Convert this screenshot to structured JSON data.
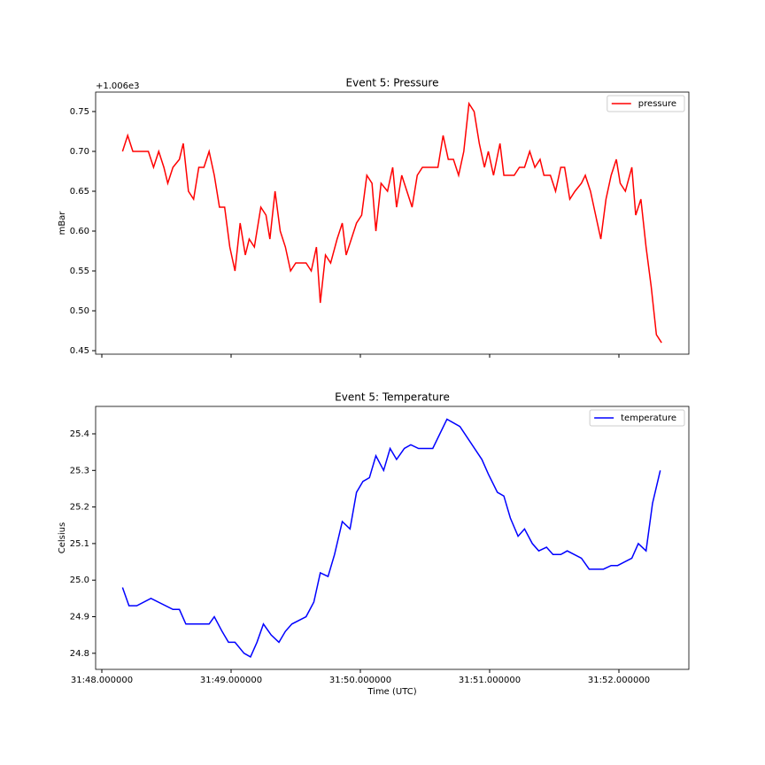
{
  "chart_data": [
    {
      "type": "line",
      "title": "Event 5: Pressure",
      "ylabel": "mBar",
      "y_offset_label": "+1.006e3",
      "xlim": [
        47.952,
        52.541
      ],
      "xticks": [
        48,
        49,
        50,
        51,
        52
      ],
      "ylim": [
        0.4456,
        0.7744
      ],
      "yticks": [
        {
          "value": 0.45,
          "label": "0.45"
        },
        {
          "value": 0.5,
          "label": "0.50"
        },
        {
          "value": 0.55,
          "label": "0.55"
        },
        {
          "value": 0.6,
          "label": "0.60"
        },
        {
          "value": 0.65,
          "label": "0.65"
        },
        {
          "value": 0.7,
          "label": "0.70"
        },
        {
          "value": 0.75,
          "label": "0.75"
        }
      ],
      "legend": "upper right",
      "x": [
        48.16,
        48.2,
        48.24,
        48.28,
        48.32,
        48.36,
        48.4,
        48.44,
        48.48,
        48.51,
        48.55,
        48.6,
        48.63,
        48.67,
        48.71,
        48.75,
        48.79,
        48.83,
        48.87,
        48.91,
        48.95,
        48.99,
        49.03,
        49.07,
        49.11,
        49.14,
        49.18,
        49.23,
        49.27,
        49.3,
        49.34,
        49.38,
        49.42,
        49.46,
        49.5,
        49.54,
        49.58,
        49.62,
        49.66,
        49.69,
        49.73,
        49.77,
        49.82,
        49.86,
        49.89,
        49.93,
        49.97,
        50.01,
        50.05,
        50.09,
        50.12,
        50.16,
        50.21,
        50.25,
        50.28,
        50.32,
        50.36,
        50.4,
        50.44,
        50.48,
        50.52,
        50.55,
        50.6,
        50.64,
        50.68,
        50.72,
        50.76,
        50.8,
        50.84,
        50.88,
        50.92,
        50.96,
        50.99,
        51.03,
        51.08,
        51.11,
        51.15,
        51.19,
        51.23,
        51.27,
        51.31,
        51.35,
        51.39,
        51.42,
        51.47,
        51.51,
        51.55,
        51.58,
        51.62,
        51.66,
        51.71,
        51.74,
        51.78,
        51.82,
        51.86,
        51.9,
        51.94,
        51.98,
        52.01,
        52.05,
        52.1,
        52.13,
        52.17,
        52.21,
        52.25,
        52.29,
        52.33
      ],
      "series": [
        {
          "name": "pressure",
          "color": "#ff0000",
          "values": [
            0.7,
            0.72,
            0.7,
            0.7,
            0.7,
            0.7,
            0.68,
            0.7,
            0.68,
            0.66,
            0.68,
            0.69,
            0.71,
            0.65,
            0.64,
            0.68,
            0.68,
            0.7,
            0.67,
            0.63,
            0.63,
            0.58,
            0.55,
            0.61,
            0.57,
            0.59,
            0.58,
            0.63,
            0.62,
            0.59,
            0.65,
            0.6,
            0.58,
            0.55,
            0.56,
            0.56,
            0.56,
            0.55,
            0.58,
            0.51,
            0.57,
            0.56,
            0.59,
            0.61,
            0.57,
            0.59,
            0.61,
            0.62,
            0.67,
            0.66,
            0.6,
            0.66,
            0.65,
            0.68,
            0.63,
            0.67,
            0.65,
            0.63,
            0.67,
            0.68,
            0.68,
            0.68,
            0.68,
            0.72,
            0.69,
            0.69,
            0.67,
            0.7,
            0.76,
            0.75,
            0.71,
            0.68,
            0.7,
            0.67,
            0.71,
            0.67,
            0.67,
            0.67,
            0.68,
            0.68,
            0.7,
            0.68,
            0.69,
            0.67,
            0.67,
            0.65,
            0.68,
            0.68,
            0.64,
            0.65,
            0.66,
            0.67,
            0.65,
            0.62,
            0.59,
            0.64,
            0.67,
            0.69,
            0.66,
            0.65,
            0.68,
            0.62,
            0.64,
            0.58,
            0.53,
            0.47,
            0.46
          ]
        }
      ]
    },
    {
      "type": "line",
      "title": "Event 5: Temperature",
      "ylabel": "Celsius",
      "xlabel": "Time (UTC)",
      "xlim": [
        47.952,
        52.541
      ],
      "xticks": [
        {
          "value": 48,
          "label": "31:48.000000"
        },
        {
          "value": 49,
          "label": "31:49.000000"
        },
        {
          "value": 50,
          "label": "31:50.000000"
        },
        {
          "value": 51,
          "label": "31:51.000000"
        },
        {
          "value": 52,
          "label": "31:52.000000"
        }
      ],
      "ylim": [
        24.756,
        25.475
      ],
      "yticks": [
        24.8,
        24.9,
        {
          "value": 25,
          "label": "25.0"
        },
        25.1,
        25.2,
        25.3,
        25.4
      ],
      "legend": "upper right",
      "x": [
        48.16,
        48.21,
        48.27,
        48.38,
        48.55,
        48.6,
        48.65,
        48.83,
        48.87,
        48.93,
        48.98,
        49.03,
        49.1,
        49.15,
        49.2,
        49.25,
        49.31,
        49.37,
        49.42,
        49.47,
        49.58,
        49.64,
        49.69,
        49.75,
        49.8,
        49.86,
        49.92,
        49.97,
        50.02,
        50.07,
        50.12,
        50.18,
        50.23,
        50.28,
        50.34,
        50.39,
        50.45,
        50.56,
        50.67,
        50.77,
        50.94,
        50.99,
        51.06,
        51.11,
        51.16,
        51.22,
        51.27,
        51.33,
        51.38,
        51.44,
        51.49,
        51.55,
        51.6,
        51.71,
        51.77,
        51.88,
        51.94,
        51.99,
        52.1,
        52.15,
        52.21,
        52.26,
        52.32
      ],
      "series": [
        {
          "name": "temperature",
          "color": "#0000ff",
          "values": [
            24.98,
            24.93,
            24.93,
            24.95,
            24.92,
            24.92,
            24.88,
            24.88,
            24.9,
            24.86,
            24.83,
            24.83,
            24.8,
            24.79,
            24.83,
            24.88,
            24.85,
            24.83,
            24.86,
            24.88,
            24.9,
            24.94,
            25.02,
            25.01,
            25.07,
            25.16,
            25.14,
            25.24,
            25.27,
            25.28,
            25.34,
            25.3,
            25.36,
            25.33,
            25.36,
            25.37,
            25.36,
            25.36,
            25.44,
            25.42,
            25.33,
            25.29,
            25.24,
            25.23,
            25.17,
            25.12,
            25.14,
            25.1,
            25.08,
            25.09,
            25.07,
            25.07,
            25.08,
            25.06,
            25.03,
            25.03,
            25.04,
            25.04,
            25.06,
            25.1,
            25.08,
            25.21,
            25.3
          ]
        }
      ]
    }
  ]
}
